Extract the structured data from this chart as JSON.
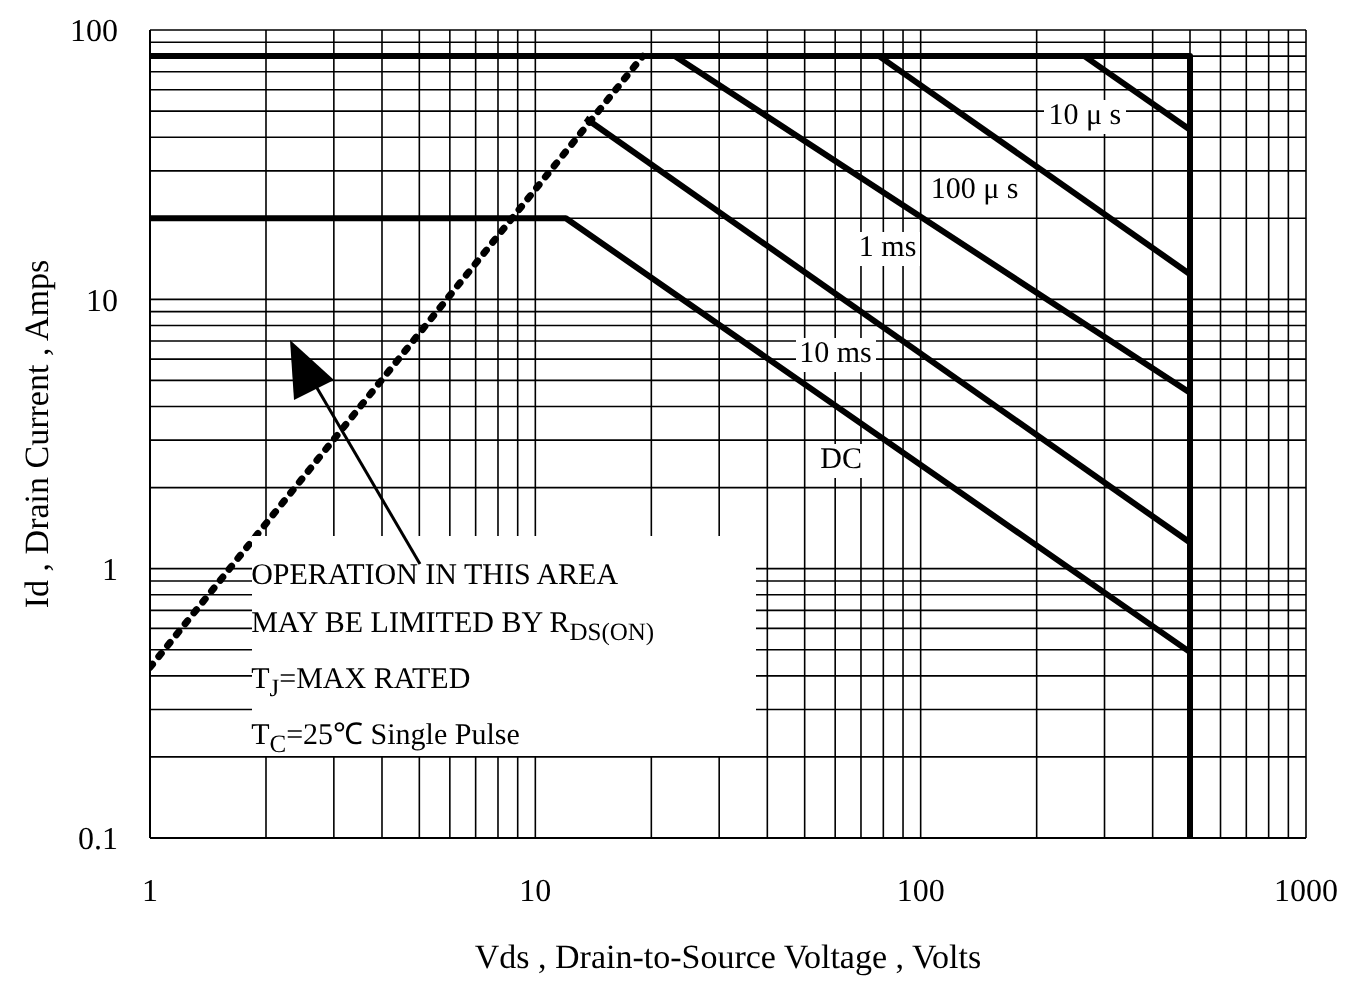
{
  "chart_data": {
    "type": "line",
    "xlabel": "Vds , Drain-to-Source Voltage , Volts",
    "ylabel": "Id , Drain Current , Amps",
    "log": "xy",
    "grid": true,
    "marker": "none",
    "xlim": [
      1,
      1000
    ],
    "ylim": [
      0.1,
      100
    ],
    "xticks": [
      1,
      {
        "value": 2,
        "label": null
      },
      {
        "value": 3,
        "label": null
      },
      {
        "value": 4,
        "label": null
      },
      {
        "value": 5,
        "label": null
      },
      {
        "value": 6,
        "label": null
      },
      {
        "value": 7,
        "label": null
      },
      {
        "value": 8,
        "label": null
      },
      {
        "value": 9,
        "label": null
      },
      10,
      {
        "value": 20,
        "label": null
      },
      {
        "value": 30,
        "label": null
      },
      {
        "value": 40,
        "label": null
      },
      {
        "value": 50,
        "label": null
      },
      {
        "value": 60,
        "label": null
      },
      {
        "value": 70,
        "label": null
      },
      {
        "value": 80,
        "label": null
      },
      {
        "value": 90,
        "label": null
      },
      100,
      {
        "value": 200,
        "label": null
      },
      {
        "value": 300,
        "label": null
      },
      {
        "value": 400,
        "label": null
      },
      {
        "value": 500,
        "label": null
      },
      {
        "value": 600,
        "label": null
      },
      {
        "value": 700,
        "label": null
      },
      {
        "value": 800,
        "label": null
      },
      {
        "value": 900,
        "label": null
      },
      1000
    ],
    "yticks": [
      0.1,
      {
        "value": 0.2,
        "label": null
      },
      {
        "value": 0.3,
        "label": null
      },
      {
        "value": 0.4,
        "label": null
      },
      {
        "value": 0.5,
        "label": null
      },
      {
        "value": 0.6,
        "label": null
      },
      {
        "value": 0.7,
        "label": null
      },
      {
        "value": 0.8,
        "label": null
      },
      {
        "value": 0.9,
        "label": null
      },
      1,
      {
        "value": 2,
        "label": null
      },
      {
        "value": 3,
        "label": null
      },
      {
        "value": 4,
        "label": null
      },
      {
        "value": 5,
        "label": null
      },
      {
        "value": 6,
        "label": null
      },
      {
        "value": 7,
        "label": null
      },
      {
        "value": 8,
        "label": null
      },
      {
        "value": 9,
        "label": null
      },
      10,
      {
        "value": 20,
        "label": null
      },
      {
        "value": 30,
        "label": null
      },
      {
        "value": 40,
        "label": null
      },
      {
        "value": 50,
        "label": null
      },
      {
        "value": 60,
        "label": null
      },
      {
        "value": 70,
        "label": null
      },
      {
        "value": 80,
        "label": null
      },
      {
        "value": 90,
        "label": null
      },
      100
    ],
    "series": [
      {
        "color": "#000000",
        "x": [
          1,
          500,
          500
        ],
        "values": [
          80,
          80,
          0.1
        ]
      },
      {
        "color": "#000000",
        "line_style": "dotted",
        "x": [
          1,
          19
        ],
        "values": [
          0.43,
          80
        ]
      },
      {
        "name": "10 μ s",
        "color": "#000000",
        "x": [
          266,
          500
        ],
        "values": [
          80,
          42.6
        ]
      },
      {
        "name": "100 μ s",
        "color": "#000000",
        "x": [
          78,
          500
        ],
        "values": [
          80,
          12.4
        ]
      },
      {
        "name": "1 ms",
        "color": "#000000",
        "x": [
          23,
          500
        ],
        "values": [
          80,
          4.5
        ]
      },
      {
        "name": "10 ms",
        "color": "#000000",
        "x": [
          13.5,
          500
        ],
        "values": [
          47,
          1.25
        ]
      },
      {
        "name": "DC",
        "color": "#000000",
        "x": [
          1,
          12,
          500
        ],
        "values": [
          20,
          20,
          0.49
        ]
      }
    ],
    "annotations": [
      "OPERATION IN THIS AREA",
      "MAY BE LIMITED BY R$_{DS(ON)}$",
      "T$_{J}$=MAX RATED",
      "T$_{C}$=25℃  Single Pulse"
    ]
  }
}
